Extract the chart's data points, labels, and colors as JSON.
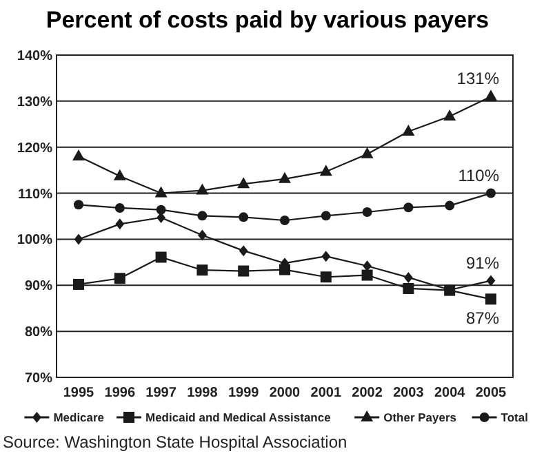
{
  "chart_data": {
    "type": "line",
    "title": "Percent of costs paid by various payers",
    "categories": [
      "1995",
      "1996",
      "1997",
      "1998",
      "1999",
      "2000",
      "2001",
      "2002",
      "2003",
      "2004",
      "2005"
    ],
    "series": [
      {
        "name": "Medicare",
        "color": "#1a1a1a",
        "marker": "diamond",
        "values": [
          100,
          103.3,
          104.7,
          100.9,
          97.5,
          94.8,
          96.3,
          94.2,
          91.7,
          89,
          91
        ]
      },
      {
        "name": "Medicaid and Medical Assistance",
        "color": "#1a1a1a",
        "marker": "square",
        "values": [
          90.2,
          91.5,
          96.1,
          93.3,
          93.1,
          93.4,
          91.8,
          92.2,
          89.3,
          88.9,
          87
        ]
      },
      {
        "name": "Other Payers",
        "color": "#1a1a1a",
        "marker": "triangle",
        "values": [
          118,
          113.7,
          110,
          110.6,
          112,
          113.1,
          114.7,
          118.5,
          123.4,
          126.7,
          131
        ]
      },
      {
        "name": "Total",
        "color": "#1a1a1a",
        "marker": "circle",
        "values": [
          107.5,
          106.8,
          106.4,
          105.1,
          104.8,
          104.1,
          105.1,
          105.9,
          106.9,
          107.3,
          110
        ]
      }
    ],
    "ylim": [
      70,
      140
    ],
    "yticks": [
      {
        "value": 70,
        "label": "70%"
      },
      {
        "value": 80,
        "label": "80%"
      },
      {
        "value": 90,
        "label": "90%"
      },
      {
        "value": 100,
        "label": "100%"
      },
      {
        "value": 110,
        "label": "110%"
      },
      {
        "value": 120,
        "label": "120%"
      },
      {
        "value": 130,
        "label": "130%"
      },
      {
        "value": 140,
        "label": "140%"
      }
    ],
    "grid": "y",
    "legend": "bottom",
    "annotations": [
      {
        "text": "131%",
        "x": "2005",
        "y": 131
      },
      {
        "text": "110%",
        "x": "2005",
        "y": 110
      },
      {
        "text": "91%",
        "x": "2005",
        "y": 91
      },
      {
        "text": "87%",
        "x": "2005",
        "y": 87
      },
      "Source: Washington State Hospital Association"
    ]
  }
}
